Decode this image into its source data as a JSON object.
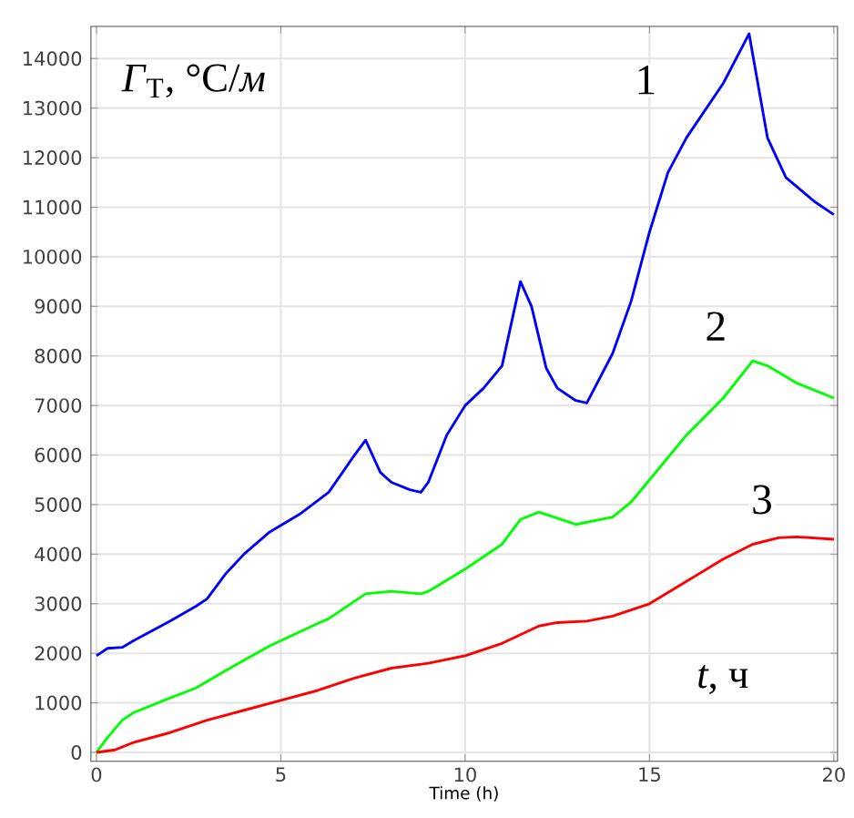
{
  "chart_data": {
    "type": "line",
    "xlabel": "Time (h)",
    "annotations": [
      "*Γ*$_{T}$, °C/*м*",
      "*t*, ч"
    ],
    "xlim": [
      -0.15,
      20.1
    ],
    "ylim": [
      -180,
      14650
    ],
    "xticks": [
      0,
      5,
      10,
      15,
      20
    ],
    "yticks": [
      0,
      1000,
      2000,
      3000,
      4000,
      5000,
      6000,
      7000,
      8000,
      9000,
      10000,
      11000,
      12000,
      13000,
      14000
    ],
    "grid": true,
    "legend": false,
    "marker": "none",
    "line_style": "solid",
    "series": [
      {
        "name": "1",
        "color": "#0000ff",
        "x": [
          0,
          0.3,
          0.7,
          1,
          2,
          2.7,
          3,
          3.5,
          4,
          4.7,
          5.5,
          6.3,
          7,
          7.3,
          7.7,
          8,
          8.5,
          8.8,
          9,
          9.5,
          10,
          10.5,
          11,
          11.5,
          11.8,
          12.2,
          12.5,
          13,
          13.3,
          14,
          14.5,
          15,
          15.5,
          16,
          17,
          17.7,
          18.2,
          18.7,
          19.5,
          20
        ],
        "values": [
          1950,
          2100,
          2120,
          2250,
          2650,
          2950,
          3100,
          3600,
          4000,
          4450,
          4800,
          5250,
          6000,
          6300,
          5650,
          5450,
          5300,
          5250,
          5450,
          6400,
          7000,
          7350,
          7800,
          9500,
          9000,
          7750,
          7350,
          7100,
          7050,
          8050,
          9100,
          10500,
          11700,
          12400,
          13500,
          14500,
          12400,
          11600,
          11100,
          10850
        ]
      },
      {
        "name": "2",
        "color": "#00ff00",
        "x": [
          0,
          0.3,
          0.7,
          1,
          2,
          2.7,
          3.5,
          4.7,
          6,
          6.3,
          7.3,
          8,
          8.8,
          9,
          10,
          11,
          11.5,
          12,
          13,
          14,
          14.5,
          15,
          16,
          17,
          17.8,
          18.2,
          19,
          20
        ],
        "values": [
          0,
          300,
          650,
          800,
          1100,
          1300,
          1650,
          2150,
          2600,
          2700,
          3200,
          3250,
          3200,
          3250,
          3700,
          4200,
          4700,
          4850,
          4600,
          4750,
          5050,
          5500,
          6400,
          7150,
          7900,
          7800,
          7450,
          7150
        ]
      },
      {
        "name": "3",
        "color": "#ff0000",
        "x": [
          0,
          0.5,
          1,
          2,
          3,
          4,
          5,
          6,
          7,
          8,
          9,
          10,
          11,
          12,
          12.5,
          13.3,
          14,
          15,
          16,
          17,
          17.8,
          18.5,
          19,
          20
        ],
        "values": [
          0,
          50,
          200,
          400,
          650,
          850,
          1050,
          1250,
          1500,
          1700,
          1800,
          1950,
          2200,
          2550,
          2620,
          2650,
          2750,
          3000,
          3450,
          3900,
          4200,
          4330,
          4350,
          4300
        ]
      }
    ]
  }
}
